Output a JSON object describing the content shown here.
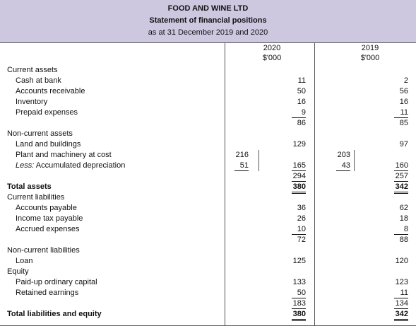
{
  "header": {
    "title": "FOOD AND WINE LTD",
    "subtitle": "Statement of financial positions",
    "date": "as at 31 December 2019 and 2020"
  },
  "columns": [
    {
      "year": "2020",
      "unit": "$'000"
    },
    {
      "year": "2019",
      "unit": "$'000"
    }
  ],
  "rows": [
    {
      "label": "Current assets",
      "values": [
        null,
        null,
        null,
        null
      ]
    },
    {
      "label": "Cash at bank",
      "values": [
        null,
        11,
        null,
        2
      ]
    },
    {
      "label": "Accounts receivable",
      "values": [
        null,
        50,
        null,
        56
      ]
    },
    {
      "label": "Inventory",
      "values": [
        null,
        16,
        null,
        16
      ]
    },
    {
      "label": "Prepaid expenses",
      "values": [
        null,
        9,
        null,
        11
      ]
    },
    {
      "values": [
        null,
        86,
        null,
        85
      ]
    },
    {
      "label": "Non-current assets",
      "values": [
        null,
        null,
        null,
        null
      ]
    },
    {
      "label": "Land and buildings",
      "values": [
        null,
        129,
        null,
        97
      ]
    },
    {
      "label": "Plant and machinery at cost",
      "values": [
        216,
        null,
        203,
        null
      ]
    },
    {
      "prefix": "Less:",
      "label": "Accumulated depreciation",
      "values": [
        51,
        165,
        43,
        160
      ]
    },
    {
      "values": [
        null,
        294,
        null,
        257
      ]
    },
    {
      "label": "Total assets",
      "values": [
        null,
        380,
        null,
        342
      ]
    },
    {
      "label": "Current liabilities",
      "values": [
        null,
        null,
        null,
        null
      ]
    },
    {
      "label": "Accounts payable",
      "values": [
        null,
        36,
        null,
        62
      ]
    },
    {
      "label": "Income tax payable",
      "values": [
        null,
        26,
        null,
        18
      ]
    },
    {
      "label": "Accrued expenses",
      "values": [
        null,
        10,
        null,
        8
      ]
    },
    {
      "values": [
        null,
        72,
        null,
        88
      ]
    },
    {
      "label": "Non-current liabilities",
      "values": [
        null,
        null,
        null,
        null
      ]
    },
    {
      "label": "Loan",
      "values": [
        null,
        125,
        null,
        120
      ]
    },
    {
      "label": "Equity",
      "values": [
        null,
        null,
        null,
        null
      ]
    },
    {
      "label": "Paid-up ordinary capital",
      "values": [
        null,
        133,
        null,
        123
      ]
    },
    {
      "label": "Retained earnings",
      "values": [
        null,
        50,
        null,
        11
      ]
    },
    {
      "values": [
        null,
        183,
        null,
        134
      ]
    },
    {
      "label": "Total liabilities and equity",
      "values": [
        null,
        380,
        null,
        342
      ]
    }
  ]
}
